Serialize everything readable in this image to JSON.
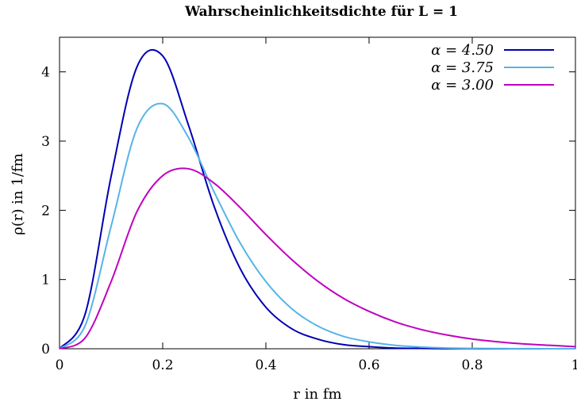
{
  "chart_data": {
    "type": "line",
    "title": "Wahrscheinlichkeitsdichte für L = 1",
    "xlabel": "r in fm",
    "ylabel": "ρ(r) in 1/fm",
    "xlim": [
      0,
      1
    ],
    "ylim": [
      0,
      4.5
    ],
    "xticks": [
      "0",
      "0.2",
      "0.4",
      "0.6",
      "0.8",
      "1"
    ],
    "yticks": [
      "0",
      "1",
      "2",
      "3",
      "4"
    ],
    "grid": false,
    "legend_position": "top-right",
    "x": [
      0,
      0.05,
      0.1,
      0.15,
      0.2,
      0.25,
      0.3,
      0.35,
      0.4,
      0.45,
      0.5,
      0.55,
      0.6,
      0.65,
      0.7,
      0.75,
      0.8,
      0.85,
      0.9,
      0.95,
      1.0
    ],
    "series": [
      {
        "name": "α = 4.50",
        "color": "#0000b3",
        "values": [
          0,
          0.51,
          2.49,
          4.07,
          4.23,
          3.23,
          2.05,
          1.16,
          0.6,
          0.29,
          0.14,
          0.06,
          0.03,
          0.01,
          0.005,
          0.002,
          0.001,
          0.0004,
          0.0002,
          0.0001,
          0.0
        ]
      },
      {
        "name": "α = 3.75",
        "color": "#56b4e9",
        "values": [
          0,
          0.34,
          1.77,
          3.18,
          3.54,
          3.05,
          2.26,
          1.53,
          0.97,
          0.58,
          0.33,
          0.18,
          0.1,
          0.05,
          0.025,
          0.012,
          0.006,
          0.003,
          0.0014,
          0.0007,
          0.0003
        ]
      },
      {
        "name": "α = 3.00",
        "color": "#c000c0",
        "values": [
          0,
          0.16,
          0.97,
          1.98,
          2.5,
          2.6,
          2.39,
          2.04,
          1.65,
          1.29,
          0.98,
          0.73,
          0.54,
          0.39,
          0.28,
          0.2,
          0.14,
          0.1,
          0.07,
          0.05,
          0.03
        ]
      }
    ]
  }
}
